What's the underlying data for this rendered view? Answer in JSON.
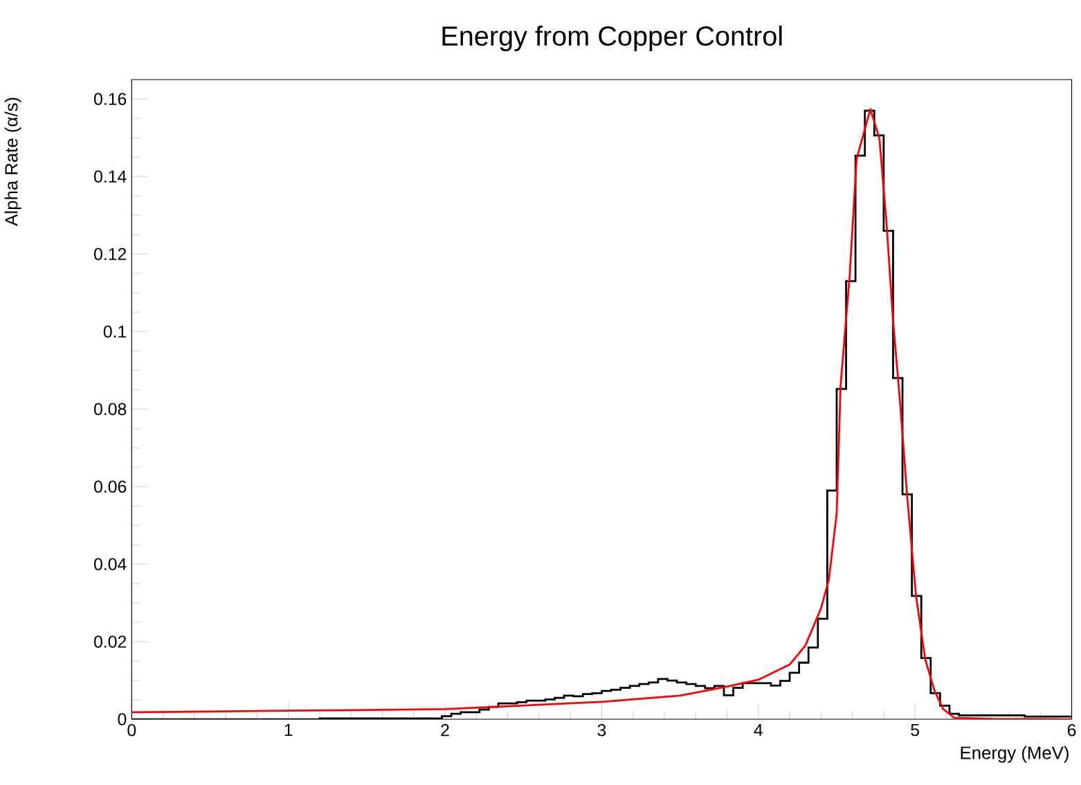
{
  "chart_data": {
    "type": "histogram",
    "title": "Energy from Copper Control",
    "xlabel": "Energy (MeV)",
    "ylabel": "Alpha Rate (α/s)",
    "bins": [
      0,
      0.06,
      0.12,
      0.18,
      0.24,
      0.3,
      0.36,
      0.42,
      0.48,
      0.54,
      0.6,
      0.66,
      0.72,
      0.78,
      0.84,
      0.9,
      0.96,
      1.02,
      1.08,
      1.14,
      1.2,
      1.26,
      1.32,
      1.38,
      1.44,
      1.5,
      1.56,
      1.62,
      1.68,
      1.74,
      1.8,
      1.86,
      1.92,
      1.98,
      2.04,
      2.1,
      2.16,
      2.22,
      2.28,
      2.34,
      2.4,
      2.46,
      2.52,
      2.58,
      2.64,
      2.7,
      2.76,
      2.82,
      2.88,
      2.94,
      3,
      3.06,
      3.12,
      3.18,
      3.24,
      3.3,
      3.36,
      3.42,
      3.48,
      3.54,
      3.6,
      3.66,
      3.72,
      3.78,
      3.84,
      3.9,
      3.96,
      4.02,
      4.08,
      4.14,
      4.2,
      4.26,
      4.32,
      4.38,
      4.44,
      4.5,
      4.56,
      4.62,
      4.68,
      4.74,
      4.8,
      4.86,
      4.92,
      4.98,
      5.04,
      5.1,
      5.16,
      5.22,
      5.28,
      5.34,
      5.4,
      5.46,
      5.52,
      5.58,
      5.64,
      5.7,
      5.76,
      5.82,
      5.88,
      5.94,
      6
    ],
    "values": [
      0,
      0,
      0,
      0,
      0,
      0,
      0,
      0,
      0,
      0,
      0,
      0,
      0,
      0,
      0,
      0,
      0,
      0,
      0,
      0,
      0.0002,
      0.0002,
      0.0002,
      0.0002,
      0.0002,
      0.0002,
      0.0002,
      0.0002,
      0.0002,
      0.0002,
      0.0002,
      0.0002,
      0.0002,
      0.0008,
      0.0014,
      0.0018,
      0.0018,
      0.0025,
      0.0032,
      0.0041,
      0.0041,
      0.0044,
      0.0048,
      0.0048,
      0.0051,
      0.0055,
      0.0061,
      0.0059,
      0.0065,
      0.0067,
      0.0073,
      0.0076,
      0.0081,
      0.0086,
      0.0091,
      0.0095,
      0.0104,
      0.01,
      0.0095,
      0.0091,
      0.0086,
      0.008,
      0.0086,
      0.0062,
      0.0081,
      0.0093,
      0.0093,
      0.0093,
      0.0087,
      0.0099,
      0.012,
      0.0146,
      0.0185,
      0.0259,
      0.059,
      0.0852,
      0.113,
      0.1454,
      0.157,
      0.1506,
      0.126,
      0.088,
      0.058,
      0.0318,
      0.0158,
      0.0067,
      0.0035,
      0.0014,
      0.001,
      0.001,
      0.001,
      0.001,
      0.001,
      0.001,
      0.001,
      0.0007,
      0.0007,
      0.0007,
      0.0007,
      0.0007
    ],
    "color": "#000000",
    "series": [
      {
        "type": "line",
        "color": "#ff0000",
        "x": [
          0,
          1,
          2,
          3,
          3.5,
          3.8,
          4,
          4.2,
          4.3,
          4.4,
          4.45,
          4.5,
          4.525,
          4.583,
          4.627,
          4.715,
          4.773,
          4.817,
          4.86,
          4.905,
          4.949,
          5.006,
          5.065,
          5.124,
          5.18,
          5.25,
          5.5,
          6
        ],
        "values": [
          0.0018,
          0.0022,
          0.0026,
          0.0045,
          0.0061,
          0.0084,
          0.0102,
          0.0141,
          0.019,
          0.0286,
          0.036,
          0.053,
          0.086,
          0.1144,
          0.1445,
          0.1574,
          0.1498,
          0.1286,
          0.1028,
          0.0816,
          0.058,
          0.032,
          0.0155,
          0.0074,
          0.0026,
          0.0004,
          0.0001,
          0
        ]
      }
    ],
    "xlim": [
      0,
      6
    ],
    "ylim": [
      0,
      0.165
    ],
    "xticks": [
      0,
      1,
      2,
      3,
      4,
      5,
      6
    ],
    "yticks": [
      0,
      0.02,
      0.04,
      0.06,
      0.08,
      0.1,
      0.12,
      0.14,
      0.16
    ],
    "grid": false
  }
}
